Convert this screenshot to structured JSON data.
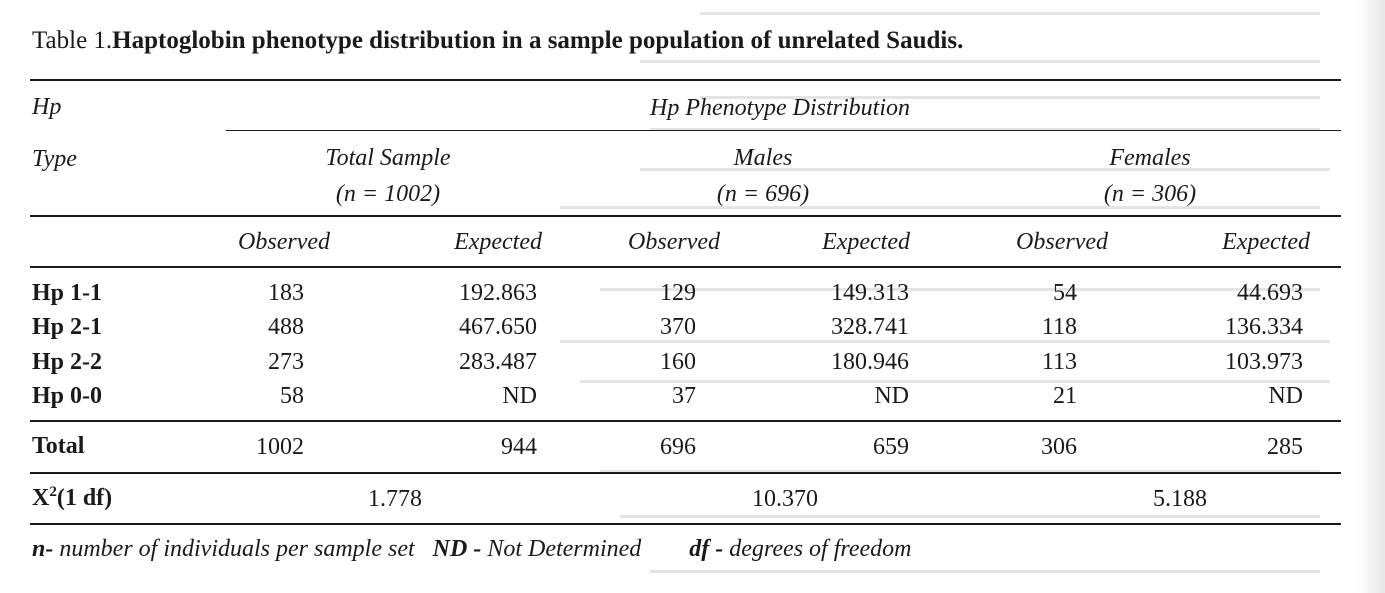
{
  "caption": {
    "label": "Table 1.",
    "title": "Haptoglobin phenotype distribution in a sample population of unrelated Saudis."
  },
  "header": {
    "hp_line1": "Hp",
    "hp_line2": "Type",
    "group_title": "Hp Phenotype Distribution",
    "groups": [
      {
        "name": "Total Sample",
        "n": "(n = 1002)"
      },
      {
        "name": "Males",
        "n": "(n = 696)"
      },
      {
        "name": "Females",
        "n": "(n = 306)"
      }
    ],
    "subcols": [
      "Observed",
      "Expected",
      "Observed",
      "Expected",
      "Observed",
      "Expected"
    ]
  },
  "rows": [
    {
      "type": "Hp 1-1",
      "cells": [
        "183",
        "192.863",
        "129",
        "149.313",
        "54",
        "44.693"
      ]
    },
    {
      "type": "Hp 2-1",
      "cells": [
        "488",
        "467.650",
        "370",
        "328.741",
        "118",
        "136.334"
      ]
    },
    {
      "type": "Hp 2-2",
      "cells": [
        "273",
        "283.487",
        "160",
        "180.946",
        "113",
        "103.973"
      ]
    },
    {
      "type": "Hp 0-0",
      "cells": [
        "58",
        "ND",
        "37",
        "ND",
        "21",
        "ND"
      ]
    }
  ],
  "total": {
    "label": "Total",
    "cells": [
      "1002",
      "944",
      "696",
      "659",
      "306",
      "285"
    ]
  },
  "chi": {
    "label_pre": "X",
    "label_sup": "2",
    "label_post": "(1 df)",
    "values": [
      "1.778",
      "10.370",
      "5.188"
    ]
  },
  "footnote": {
    "n_key": "n-",
    "n_text": " number of individuals per sample set",
    "nd_key": "ND -",
    "nd_text": " Not Determined",
    "df_key": "df -",
    "df_text": " degrees of freedom"
  }
}
